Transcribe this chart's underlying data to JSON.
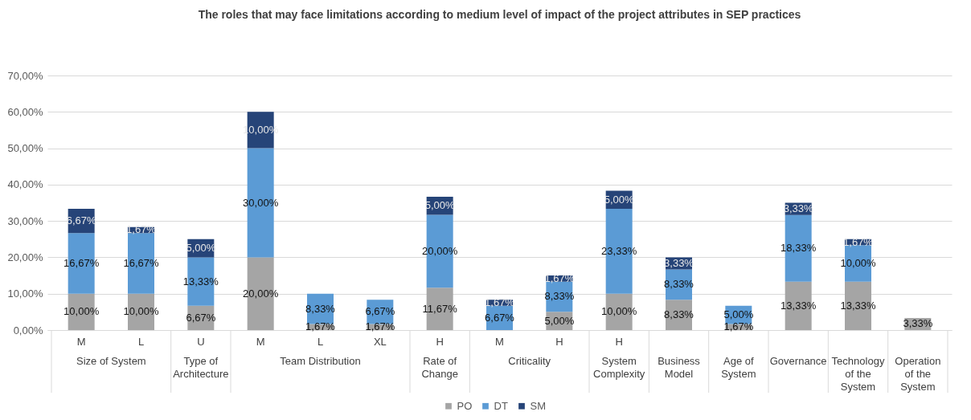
{
  "chart_data": {
    "type": "bar",
    "title": "The roles that may face limitations according to medium level of impact of the project attributes in SEP practices",
    "categories": [
      "M",
      "L",
      "U",
      "M",
      "L",
      "XL",
      "H",
      "M",
      "H",
      "H",
      null,
      null,
      null,
      null,
      null
    ],
    "annotations": [
      "Size of System",
      "Type of Architecture",
      "Team Distribution",
      "Rate of Change",
      "Criticality",
      "System Complexity",
      "Business Model",
      "Age of System",
      "Governance",
      "Technology of the System",
      "Operation of the System"
    ],
    "stacked": true,
    "series": [
      {
        "name": "PO",
        "color": "#a5a5a5",
        "values": [
          10,
          10,
          6.67,
          20,
          1.67,
          1.67,
          11.67,
          null,
          5,
          10,
          8.33,
          1.67,
          13.33,
          13.33,
          3.33
        ],
        "value_labels": [
          "10,00%",
          "10,00%",
          "6,67%",
          "20,00%",
          "1,67%",
          "1,67%",
          "11,67%",
          null,
          "5,00%",
          "10,00%",
          "8,33%",
          "1,67%",
          "13,33%",
          "13,33%",
          "3,33%"
        ]
      },
      {
        "name": "DT",
        "color": "#5b9bd5",
        "values": [
          16.67,
          16.67,
          13.33,
          30,
          8.33,
          6.67,
          20,
          6.67,
          8.33,
          23.33,
          8.33,
          5,
          18.33,
          10,
          null
        ],
        "value_labels": [
          "16,67%",
          "16,67%",
          "13,33%",
          "30,00%",
          "8,33%",
          "6,67%",
          "20,00%",
          "6,67%",
          "8,33%",
          "23,33%",
          "8,33%",
          "5,00%",
          "18,33%",
          "10,00%",
          null
        ]
      },
      {
        "name": "SM",
        "color": "#264478",
        "values": [
          6.67,
          1.67,
          5,
          10,
          null,
          null,
          5,
          1.67,
          1.67,
          5,
          3.33,
          null,
          3.33,
          1.67,
          null
        ],
        "value_labels": [
          "6,67%",
          "1,67%",
          "5,00%",
          "10,00%",
          null,
          null,
          "5,00%",
          "1,67%",
          "1,67%",
          "5,00%",
          "3,33%",
          null,
          "3,33%",
          "1,67%",
          null
        ]
      }
    ],
    "ylim": [
      0,
      70
    ],
    "yticks": [
      {
        "value": 0,
        "label": "0,00%"
      },
      {
        "value": 10,
        "label": "10,00%"
      },
      {
        "value": 20,
        "label": "20,00%"
      },
      {
        "value": 30,
        "label": "30,00%"
      },
      {
        "value": 40,
        "label": "40,00%"
      },
      {
        "value": 50,
        "label": "50,00%"
      },
      {
        "value": 60,
        "label": "60,00%"
      },
      {
        "value": 70,
        "label": "70,00%"
      }
    ],
    "grid": "y",
    "legend": "bottom"
  }
}
